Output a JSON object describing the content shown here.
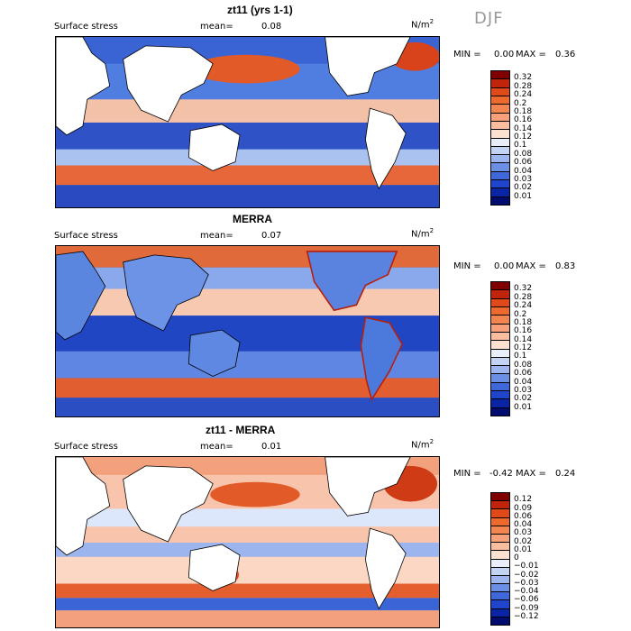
{
  "season": "DJF",
  "panels": [
    {
      "title": "zt11 (yrs 1-1)",
      "field": "Surface stress",
      "mean_label": "mean=",
      "mean_value": "0.08",
      "unit": "N/m",
      "unit_exp": "2",
      "min_label": "MIN =",
      "min_value": "0.00",
      "max_label": "MAX =",
      "max_value": "0.36",
      "colorbar": {
        "labels": [
          "0.32",
          "0.28",
          "0.24",
          "0.2",
          "0.18",
          "0.16",
          "0.14",
          "0.12",
          "0.1",
          "0.08",
          "0.06",
          "0.04",
          "0.03",
          "0.02",
          "0.01"
        ],
        "colors": [
          "#800000",
          "#c1240a",
          "#e04a18",
          "#ee6a2c",
          "#f38550",
          "#f7a079",
          "#fabd9d",
          "#fde1d0",
          "#e8eefa",
          "#c2d3f4",
          "#9cb5ee",
          "#6c8fe6",
          "#3f68dc",
          "#1f45cc",
          "#0a24a6",
          "#000d6e"
        ]
      }
    },
    {
      "title": "MERRA",
      "field": "Surface stress",
      "mean_label": "mean=",
      "mean_value": "0.07",
      "unit": "N/m",
      "unit_exp": "2",
      "min_label": "MIN =",
      "min_value": "0.00",
      "max_label": "MAX =",
      "max_value": "0.83",
      "colorbar": {
        "labels": [
          "0.32",
          "0.28",
          "0.24",
          "0.2",
          "0.18",
          "0.16",
          "0.14",
          "0.12",
          "0.1",
          "0.08",
          "0.06",
          "0.04",
          "0.03",
          "0.02",
          "0.01"
        ],
        "colors": [
          "#800000",
          "#c1240a",
          "#e04a18",
          "#ee6a2c",
          "#f38550",
          "#f7a079",
          "#fabd9d",
          "#fde1d0",
          "#e8eefa",
          "#c2d3f4",
          "#9cb5ee",
          "#6c8fe6",
          "#3f68dc",
          "#1f45cc",
          "#0a24a6",
          "#000d6e"
        ]
      }
    },
    {
      "title": "zt11 - MERRA",
      "field": "Surface stress",
      "mean_label": "mean=",
      "mean_value": "0.01",
      "unit": "N/m",
      "unit_exp": "2",
      "min_label": "MIN =",
      "min_value": "-0.42",
      "max_label": "MAX =",
      "max_value": "0.24",
      "colorbar": {
        "labels": [
          "0.12",
          "0.09",
          "0.06",
          "0.04",
          "0.03",
          "0.02",
          "0.01",
          "0",
          "−0.01",
          "−0.02",
          "−0.03",
          "−0.04",
          "−0.06",
          "−0.09",
          "−0.12"
        ],
        "colors": [
          "#800000",
          "#c1240a",
          "#e04a18",
          "#ee6a2c",
          "#f38550",
          "#f7a079",
          "#fabd9d",
          "#fde1d0",
          "#e8eefa",
          "#c2d3f4",
          "#9cb5ee",
          "#6c8fe6",
          "#3f68dc",
          "#1f45cc",
          "#0a24a6",
          "#000d6e"
        ]
      }
    }
  ]
}
